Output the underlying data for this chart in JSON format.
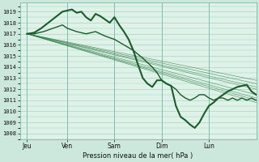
{
  "title": "Pression niveau de la mer( hPa )",
  "ylabel_ticks": [
    1008,
    1009,
    1010,
    1011,
    1012,
    1013,
    1014,
    1015,
    1016,
    1017,
    1018,
    1019
  ],
  "ylim": [
    1007.5,
    1019.8
  ],
  "xlim": [
    0,
    100
  ],
  "xtick_positions": [
    3,
    20,
    40,
    60,
    80
  ],
  "xtick_labels": [
    "Jeu",
    "Ven",
    "Sam",
    "Dim",
    "Lun"
  ],
  "bg_color": "#cce8dc",
  "plot_bg_color": "#dff2e8",
  "grid_color": "#99ccbb",
  "line_color_dark": "#1a5c2a",
  "line_color_med": "#2d7a45",
  "vline_x": [
    3,
    20,
    40,
    60,
    80
  ],
  "thick_line": [
    3,
    1017,
    6,
    1017.1,
    9,
    1017.5,
    12,
    1018.0,
    15,
    1018.5,
    18,
    1019.0,
    20,
    1019.1,
    22,
    1019.2,
    24,
    1018.9,
    26,
    1019.0,
    28,
    1018.5,
    30,
    1018.2,
    32,
    1018.8,
    34,
    1018.6,
    36,
    1018.3,
    38,
    1018.0,
    40,
    1018.5,
    42,
    1017.8,
    44,
    1017.2,
    46,
    1016.5,
    48,
    1015.5,
    50,
    1014.2,
    52,
    1013.0,
    54,
    1012.5,
    56,
    1012.2,
    58,
    1012.8,
    60,
    1012.8,
    62,
    1012.5,
    64,
    1012.3,
    66,
    1010.5,
    68,
    1009.5,
    70,
    1009.2,
    72,
    1008.8,
    74,
    1008.5,
    76,
    1009.0,
    78,
    1009.8,
    80,
    1010.5,
    82,
    1010.8,
    84,
    1011.2,
    86,
    1011.5,
    88,
    1011.8,
    90,
    1012.0,
    92,
    1012.2,
    94,
    1012.3,
    96,
    1012.4,
    98,
    1011.8,
    100,
    1011.5
  ],
  "med_line": [
    3,
    1017,
    6,
    1017.0,
    10,
    1017.2,
    14,
    1017.5,
    18,
    1017.8,
    20,
    1017.5,
    24,
    1017.2,
    28,
    1017.0,
    32,
    1017.2,
    36,
    1016.8,
    40,
    1016.5,
    44,
    1016.0,
    48,
    1015.5,
    52,
    1014.8,
    56,
    1014.0,
    58,
    1013.5,
    60,
    1012.8,
    62,
    1012.5,
    64,
    1012.3,
    66,
    1012.0,
    68,
    1011.5,
    70,
    1011.2,
    72,
    1011.0,
    74,
    1011.2,
    76,
    1011.5,
    78,
    1011.5,
    80,
    1011.2,
    82,
    1011.0,
    84,
    1011.2,
    86,
    1011.2,
    88,
    1011.0,
    90,
    1011.2,
    92,
    1011.0,
    94,
    1011.2,
    96,
    1011.0,
    98,
    1011.2,
    100,
    1011.0
  ],
  "thin_lines": [
    [
      3,
      1017,
      100,
      1012.8
    ],
    [
      3,
      1017,
      100,
      1012.5
    ],
    [
      3,
      1017,
      100,
      1012.2
    ],
    [
      3,
      1017,
      100,
      1012.0
    ],
    [
      3,
      1017,
      100,
      1011.5
    ],
    [
      3,
      1017,
      100,
      1011.2
    ],
    [
      3,
      1017,
      100,
      1011.0
    ],
    [
      3,
      1017,
      100,
      1010.8
    ]
  ]
}
